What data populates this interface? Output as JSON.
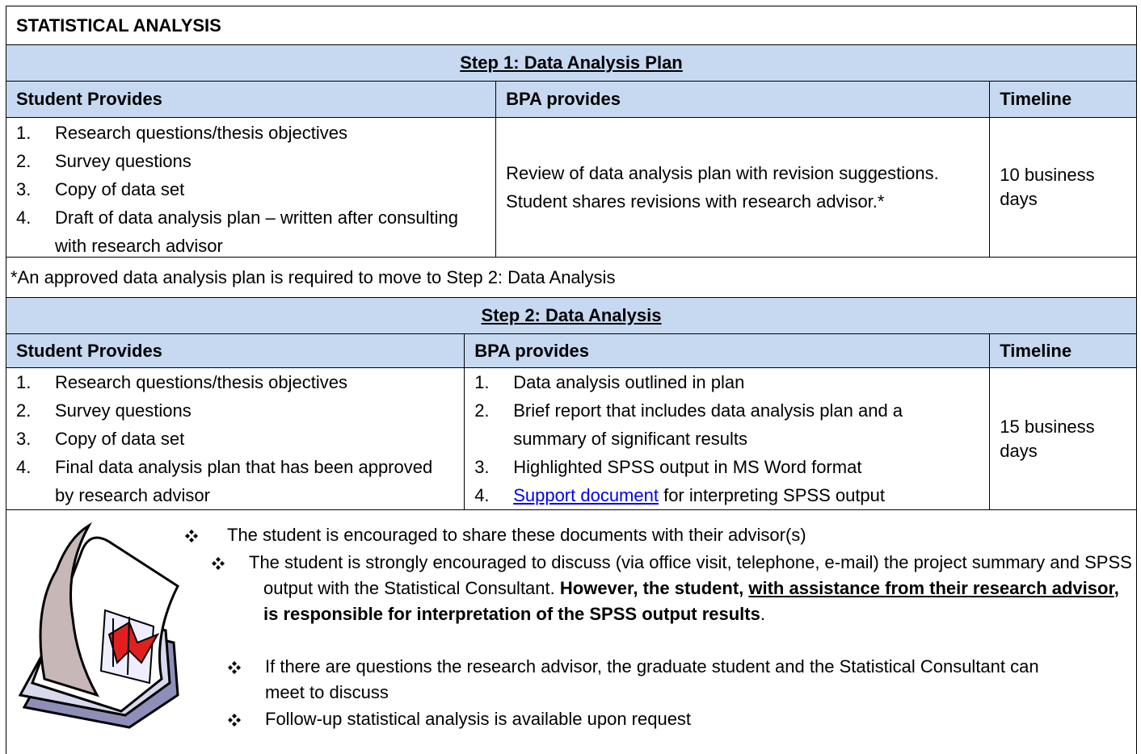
{
  "title": "STATISTICAL ANALYSIS",
  "step1": {
    "heading": "Step 1:  Data Analysis Plan",
    "columns": [
      "Student Provides",
      "BPA provides",
      "Timeline"
    ],
    "student_items": [
      {
        "number": "1.",
        "text": "Research questions/thesis objectives"
      },
      {
        "number": "2.",
        "text": "Survey questions"
      },
      {
        "number": "3.",
        "text": "Copy of data set"
      },
      {
        "number": "4.",
        "text": "Draft of data analysis plan – written after consulting with research advisor"
      }
    ],
    "bpa_lines": [
      "Review of data analysis plan with revision suggestions.",
      "Student shares revisions with research advisor.*"
    ],
    "timeline": "10 business days"
  },
  "note": "*An approved data analysis plan is required to move to Step 2: Data Analysis",
  "step2": {
    "heading": "Step 2:  Data Analysis",
    "columns": [
      "Student Provides",
      "BPA provides",
      "Timeline"
    ],
    "student_items": [
      {
        "number": "1.",
        "text": "Research questions/thesis objectives"
      },
      {
        "number": "2.",
        "text": "Survey questions"
      },
      {
        "number": "3.",
        "text": "Copy of data set"
      },
      {
        "number": "4.",
        "text": "Final data analysis plan that has been approved by research advisor"
      }
    ],
    "bpa_items": [
      {
        "number": "1.",
        "text": "Data analysis outlined in plan"
      },
      {
        "number": "2.",
        "text": "Brief report that includes data analysis plan and a summary of significant results"
      },
      {
        "number": "3.",
        "text": "Highlighted SPSS output in MS Word format"
      },
      {
        "number": "4.",
        "link": "Support document",
        "text": " for interpreting SPSS output"
      }
    ],
    "timeline": "15 business days"
  },
  "bullets": {
    "b1": "The student is encouraged to share these documents with their advisor(s)",
    "b2": {
      "text": "The student is strongly encouraged to discuss (via office visit, telephone, e-mail) the project summary and SPSS output with the Statistical Consultant.  ",
      "bold": "However, the student, ",
      "bold_underline": "with assistance from their research advisor",
      "bold_2": ", is responsible for interpretation of the SPSS output results",
      "tail": "."
    },
    "b3": "If there are questions the research advisor, the graduate student and the Statistical Consultant can meet to discuss",
    "b4": "Follow-up statistical analysis is available upon request"
  }
}
